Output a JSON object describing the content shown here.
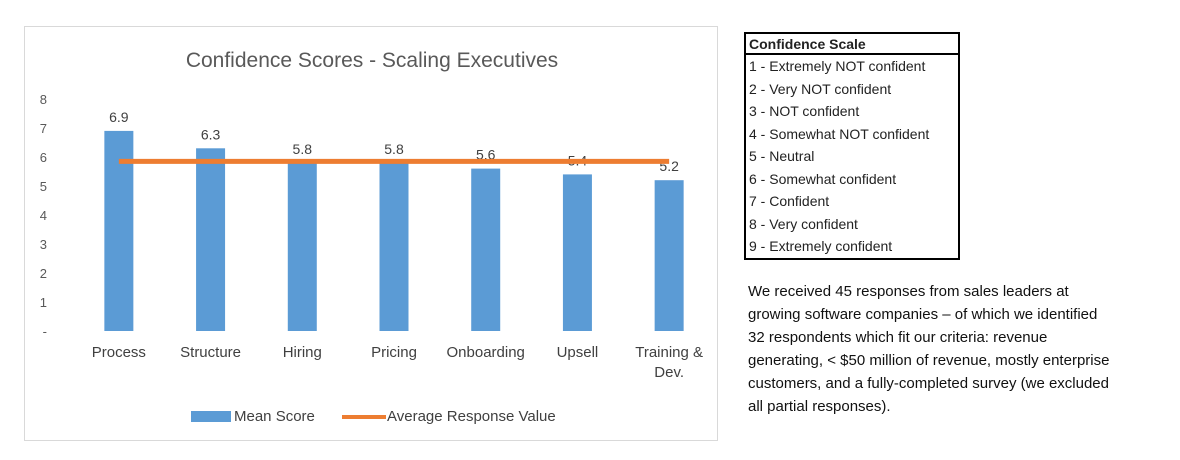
{
  "chart_data": {
    "type": "bar",
    "title": "Confidence Scores - Scaling Executives",
    "categories": [
      "Process",
      "Structure",
      "Hiring",
      "Pricing",
      "Onboarding",
      "Upsell",
      "Training & Dev."
    ],
    "category_lines": [
      [
        "Process"
      ],
      [
        "Structure"
      ],
      [
        "Hiring"
      ],
      [
        "Pricing"
      ],
      [
        "Onboarding"
      ],
      [
        "Upsell"
      ],
      [
        "Training &",
        "Dev."
      ]
    ],
    "series": [
      {
        "name": "Mean Score",
        "type": "bar",
        "color": "#5b9bd5",
        "values": [
          6.9,
          6.3,
          5.8,
          5.8,
          5.6,
          5.4,
          5.2
        ],
        "labels": [
          "6.9",
          "6.3",
          "5.8",
          "5.8",
          "5.6",
          "5.4",
          "5.2"
        ]
      },
      {
        "name": "Average Response Value",
        "type": "line",
        "color": "#ed7d31",
        "values": [
          5.85,
          5.85,
          5.85,
          5.85,
          5.85,
          5.85,
          5.85
        ]
      }
    ],
    "ylim": [
      0,
      8
    ],
    "yticks": [
      "-",
      "1",
      "2",
      "3",
      "4",
      "5",
      "6",
      "7",
      "8"
    ],
    "xlabel": "",
    "ylabel": "",
    "grid": false,
    "legend": "bottom"
  },
  "scale": {
    "title": "Confidence Scale",
    "items": [
      "1 - Extremely NOT confident",
      "2 - Very NOT confident",
      "3 - NOT confident",
      "4 - Somewhat NOT confident",
      "5 - Neutral",
      "6 - Somewhat confident",
      "7 - Confident",
      "8 - Very confident",
      "9 - Extremely confident"
    ]
  },
  "description_lines": [
    "We received 45 responses from sales leaders at",
    "growing software companies – of which we identified",
    "32 respondents which fit our criteria: revenue",
    "generating, < $50 million of revenue, mostly enterprise",
    "customers, and a fully-completed survey (we excluded",
    "all partial responses)."
  ]
}
